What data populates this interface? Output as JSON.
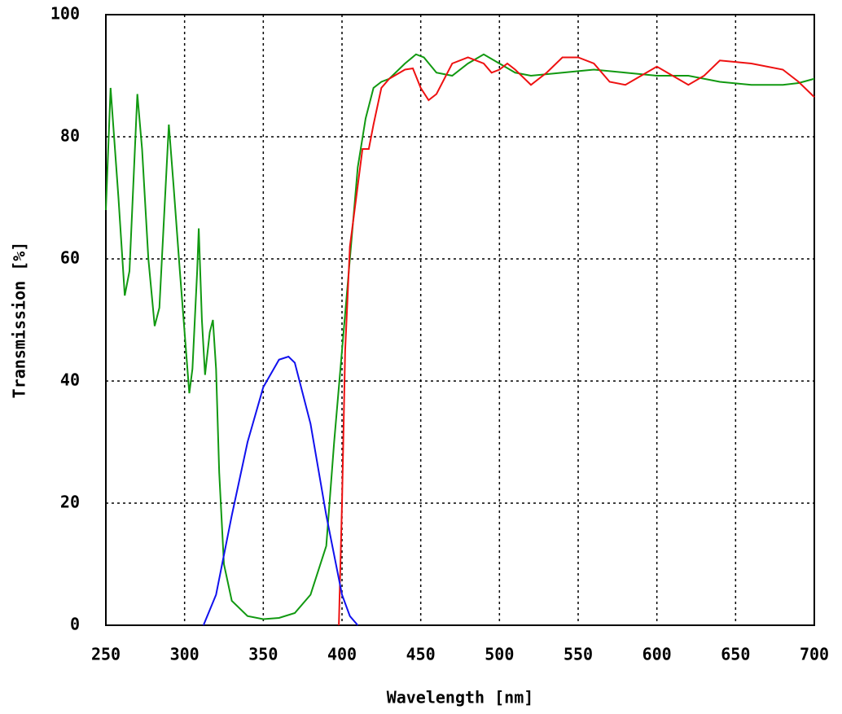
{
  "chart_data": {
    "type": "line",
    "x_label": "Wavelength [nm]",
    "y_label": "Transmission [%]",
    "xlim": [
      250,
      700
    ],
    "ylim": [
      0,
      100
    ],
    "xticks": [
      250,
      300,
      350,
      400,
      450,
      500,
      550,
      600,
      650,
      700
    ],
    "yticks": [
      0,
      20,
      40,
      60,
      80,
      100
    ],
    "grid": true,
    "series": [
      {
        "color": "#119911",
        "x": [
          250,
          253,
          258,
          262,
          265,
          270,
          273,
          277,
          281,
          284,
          290,
          293,
          297,
          300,
          303,
          305,
          308,
          309,
          311,
          313,
          316,
          318,
          320,
          322,
          325,
          330,
          340,
          350,
          360,
          370,
          380,
          390,
          395,
          400,
          405,
          410,
          415,
          420,
          425,
          430,
          440,
          447,
          452,
          460,
          470,
          480,
          490,
          500,
          510,
          520,
          540,
          560,
          580,
          600,
          620,
          640,
          660,
          680,
          690,
          700
        ],
        "values": [
          68,
          88,
          70,
          54,
          58,
          87,
          78,
          60,
          49,
          52,
          82,
          72,
          58,
          48,
          38,
          42,
          58,
          65,
          50,
          41,
          48,
          50,
          42,
          25,
          10,
          4,
          1.5,
          1,
          1.2,
          2,
          5,
          13,
          30,
          45,
          60,
          75,
          83,
          88,
          89,
          89.5,
          92,
          93.5,
          93,
          90.5,
          90,
          92,
          93.5,
          92,
          90.5,
          90,
          90.5,
          91,
          90.5,
          90,
          90,
          89,
          88.5,
          88.5,
          88.8,
          89.5
        ]
      },
      {
        "color": "#ee1111",
        "x": [
          398,
          400,
          402,
          405,
          410,
          413,
          417,
          420,
          425,
          430,
          440,
          445,
          450,
          455,
          460,
          470,
          480,
          490,
          495,
          500,
          505,
          510,
          520,
          530,
          540,
          550,
          560,
          570,
          580,
          590,
          600,
          610,
          620,
          630,
          640,
          660,
          680,
          690,
          700
        ],
        "values": [
          0,
          20,
          45,
          62,
          72,
          78,
          78,
          82,
          88,
          89.5,
          91,
          91.2,
          88,
          86,
          87,
          92,
          93,
          92,
          90.5,
          91,
          92,
          91,
          88.5,
          90.5,
          93,
          93,
          92,
          89,
          88.5,
          90,
          91.5,
          90,
          88.5,
          90,
          92.5,
          92,
          91,
          89,
          86.5
        ]
      },
      {
        "color": "#1111ee",
        "x": [
          312,
          320,
          330,
          340,
          350,
          360,
          366,
          370,
          380,
          390,
          400,
          405,
          410
        ],
        "values": [
          0,
          5,
          18,
          30,
          39,
          43.5,
          44,
          43,
          33,
          18,
          5,
          1.5,
          0
        ]
      }
    ]
  }
}
